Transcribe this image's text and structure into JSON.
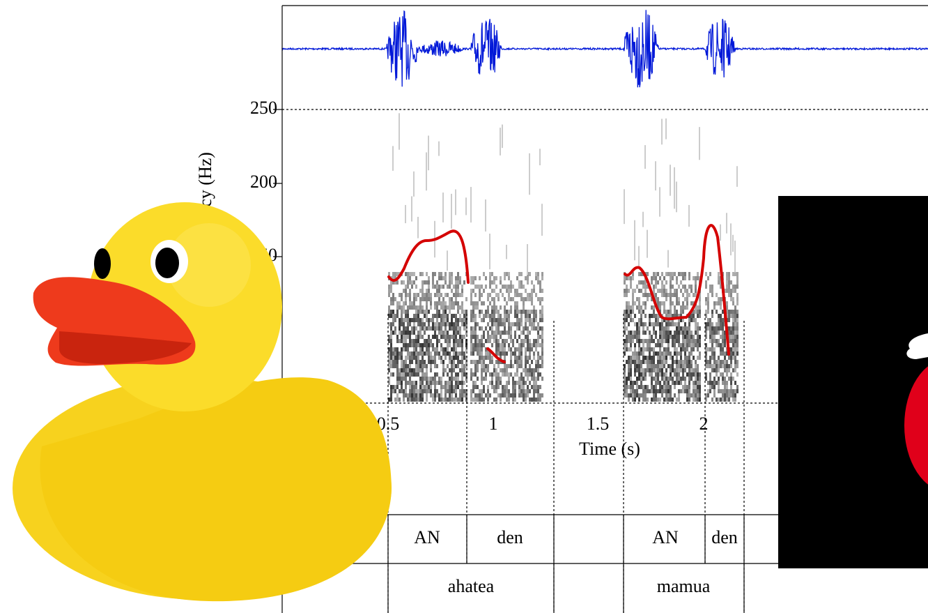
{
  "y_axis": {
    "label": "Frequency (Hz)",
    "ticks": [
      "250",
      "200",
      "150"
    ]
  },
  "x_axis": {
    "label": "Time (s)",
    "ticks": [
      "0.5",
      "1",
      "1.5",
      "2"
    ]
  },
  "tiers": [
    [
      "AN",
      "den",
      "AN",
      "den"
    ],
    [
      "ahatea",
      "mamua"
    ]
  ]
}
